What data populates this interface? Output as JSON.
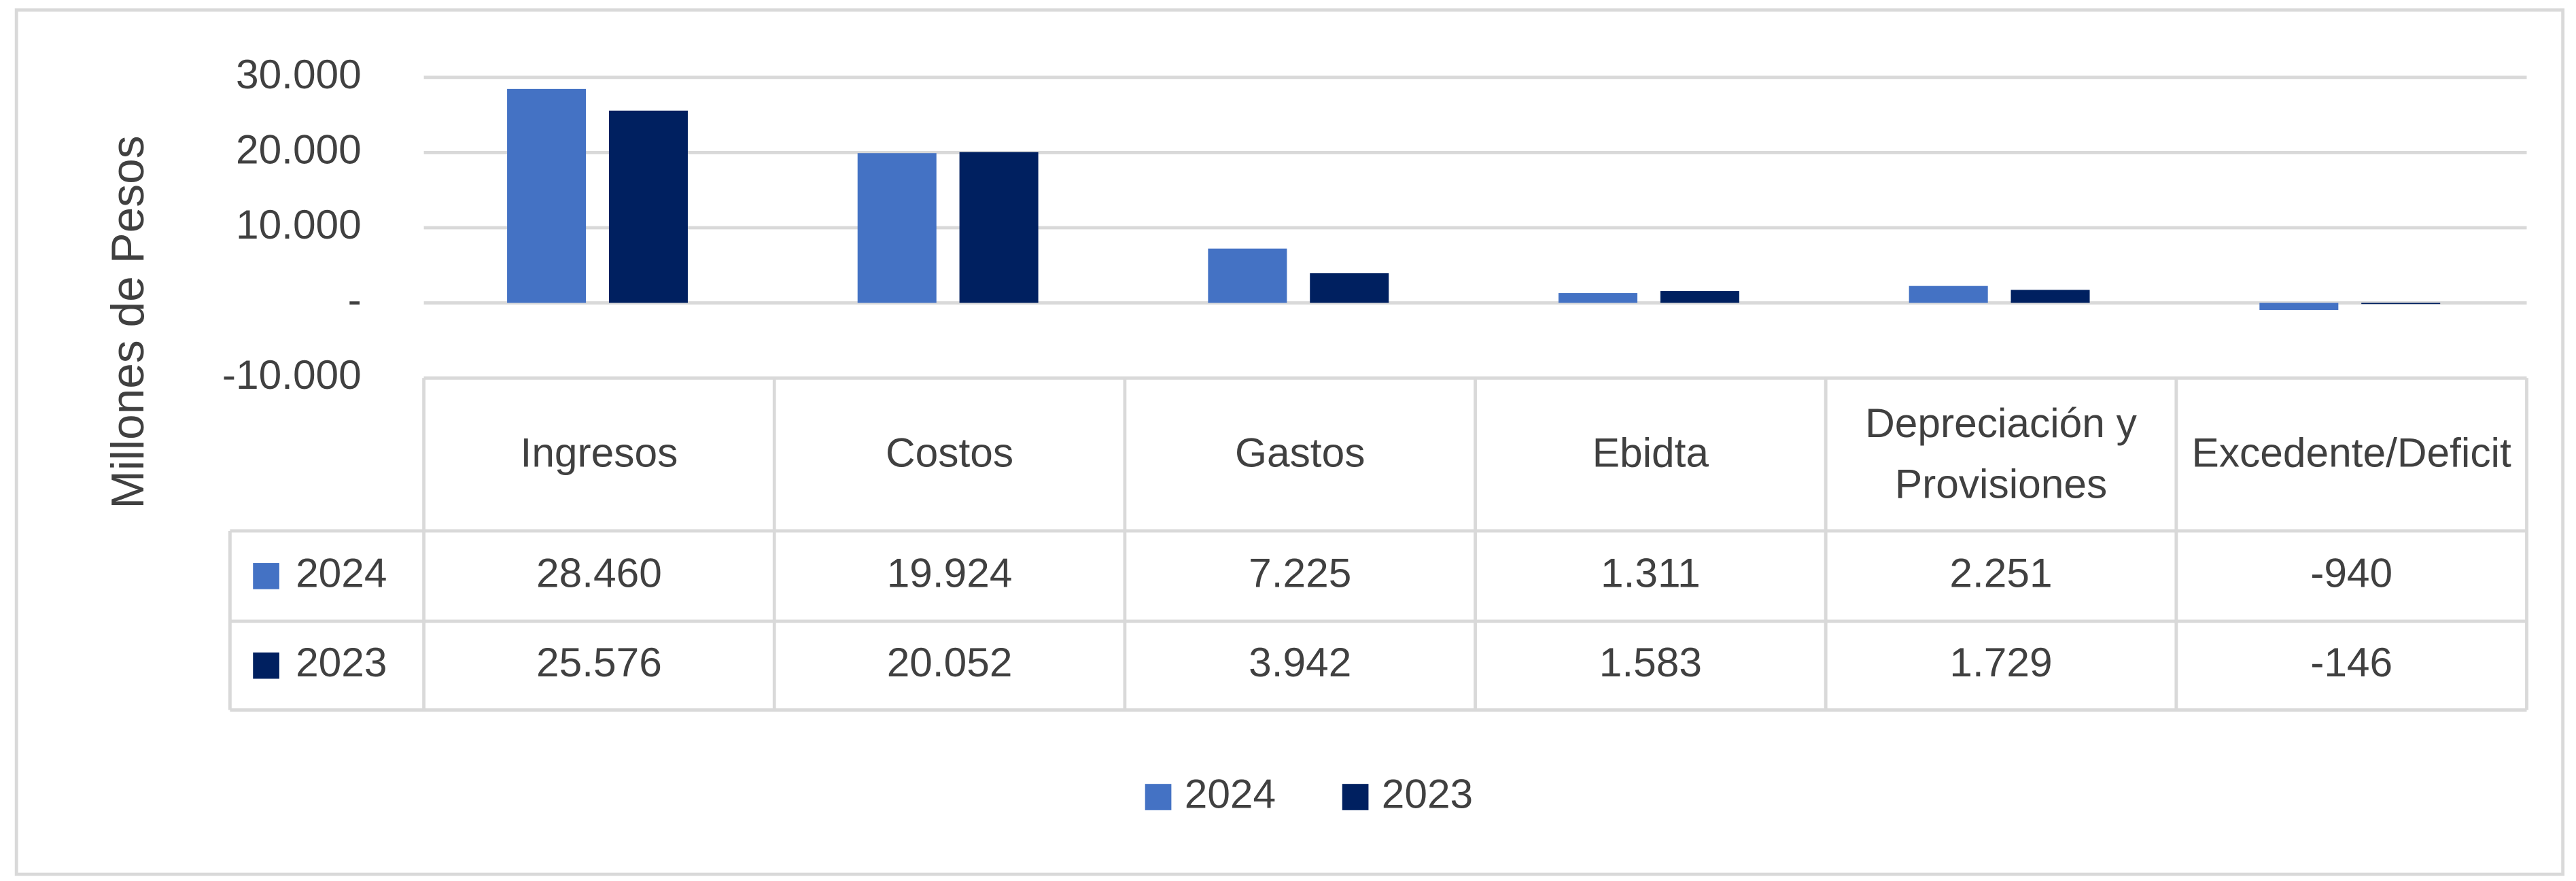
{
  "chart_data": {
    "type": "bar",
    "y_axis_label": "Millones de Pesos",
    "categories": [
      "Ingresos",
      "Costos",
      "Gastos",
      "Ebidta",
      "Depreciación y Provisiones",
      "Excedente/Deficit"
    ],
    "series": [
      {
        "name": "2024",
        "color": "#4472c4",
        "values": [
          28460,
          19924,
          7225,
          1311,
          2251,
          -940
        ],
        "value_labels": [
          "28.460",
          "19.924",
          "7.225",
          "1.311",
          "2.251",
          "-940"
        ]
      },
      {
        "name": "2023",
        "color": "#002060",
        "values": [
          25576,
          20052,
          3942,
          1583,
          1729,
          -146
        ],
        "value_labels": [
          "25.576",
          "20.052",
          "3.942",
          "1.583",
          "1.729",
          "-146"
        ]
      }
    ],
    "ylim": [
      -10000,
      30000
    ],
    "yticks": [
      {
        "value": -10000,
        "label": "-10.000"
      },
      {
        "value": 0,
        "label": "-"
      },
      {
        "value": 10000,
        "label": "10.000"
      },
      {
        "value": 20000,
        "label": "20.000"
      },
      {
        "value": 30000,
        "label": "30.000"
      }
    ],
    "grid": true,
    "legend": "bottom",
    "data_table": true
  }
}
